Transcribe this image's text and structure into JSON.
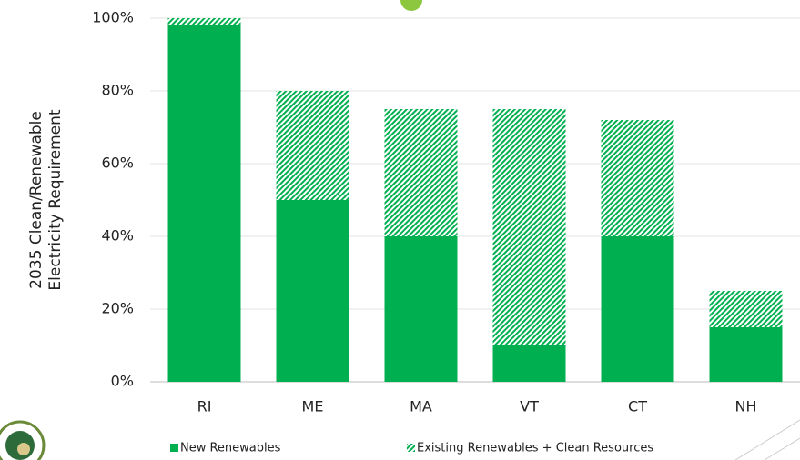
{
  "chart_data": {
    "type": "stacked_bar",
    "ylabel": [
      "2035 Clean/Renewable",
      "Electricity Requirement"
    ],
    "categories": [
      "RI",
      "ME",
      "MA",
      "VT",
      "CT",
      "NH"
    ],
    "series": [
      {
        "name": "New Renewables",
        "color": "#00b050",
        "pattern": "solid",
        "values": [
          98,
          50,
          40,
          10,
          40,
          15
        ]
      },
      {
        "name": "Existing Renewables + Clean Resources",
        "color": "#00b050",
        "pattern": "hatch",
        "values": [
          2,
          30,
          35,
          65,
          32,
          10
        ]
      }
    ],
    "ylim": [
      0,
      100
    ],
    "yticks": [
      {
        "value": 0,
        "label": "0%"
      },
      {
        "value": 20,
        "label": "20%"
      },
      {
        "value": 40,
        "label": "40%"
      },
      {
        "value": 60,
        "label": "60%"
      },
      {
        "value": 80,
        "label": "80%"
      },
      {
        "value": 100,
        "label": "100%"
      }
    ],
    "grid": true
  }
}
